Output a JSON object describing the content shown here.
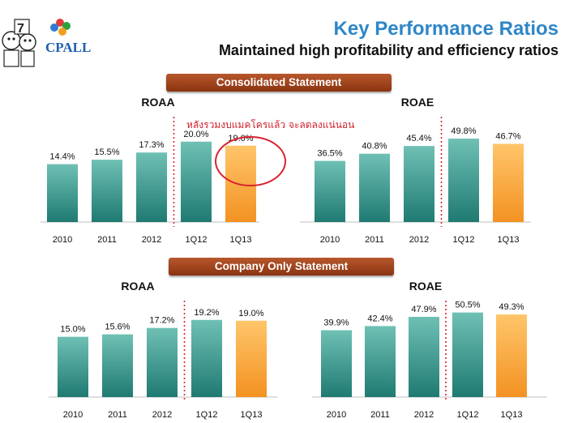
{
  "header": {
    "title": "Key Performance Ratios",
    "subtitle": "Maintained high profitability and efficiency ratios",
    "logo_text": "CPALL",
    "logo_badge": "7"
  },
  "colors": {
    "teal": "#2f958a",
    "orange": "#f7a43a",
    "divider": "#d9232e",
    "banner": "#9a3f19"
  },
  "sections": [
    {
      "banner": "Consolidated Statement"
    },
    {
      "banner": "Company Only Statement"
    }
  ],
  "annotation": {
    "text": "หลังรวมงบแมคโครแล้ว  จะลดลงแน่นอน",
    "color": "#d9232e"
  },
  "chart_data": [
    {
      "type": "bar",
      "title": "ROAA",
      "categories": [
        "2010",
        "2011",
        "2012",
        "1Q12",
        "1Q13"
      ],
      "values": [
        14.4,
        15.5,
        17.3,
        20.0,
        19.0
      ],
      "labels": [
        "14.4%",
        "15.5%",
        "17.3%",
        "20.0%",
        "19.0%"
      ],
      "ylim": [
        0,
        25
      ]
    },
    {
      "type": "bar",
      "title": "ROAE",
      "categories": [
        "2010",
        "2011",
        "2012",
        "1Q12",
        "1Q13"
      ],
      "values": [
        36.5,
        40.8,
        45.4,
        49.8,
        46.7
      ],
      "labels": [
        "36.5%",
        "40.8%",
        "45.4%",
        "49.8%",
        "46.7%"
      ],
      "ylim": [
        0,
        60
      ]
    },
    {
      "type": "bar",
      "title": "ROAA",
      "categories": [
        "2010",
        "2011",
        "2012",
        "1Q12",
        "1Q13"
      ],
      "values": [
        15.0,
        15.6,
        17.2,
        19.2,
        19.0
      ],
      "labels": [
        "15.0%",
        "15.6%",
        "17.2%",
        "19.2%",
        "19.0%"
      ],
      "ylim": [
        0,
        25
      ]
    },
    {
      "type": "bar",
      "title": "ROAE",
      "categories": [
        "2010",
        "2011",
        "2012",
        "1Q12",
        "1Q13"
      ],
      "values": [
        39.9,
        42.4,
        47.9,
        50.5,
        49.3
      ],
      "labels": [
        "39.9%",
        "42.4%",
        "47.9%",
        "50.5%",
        "49.3%"
      ],
      "ylim": [
        0,
        60
      ]
    }
  ]
}
